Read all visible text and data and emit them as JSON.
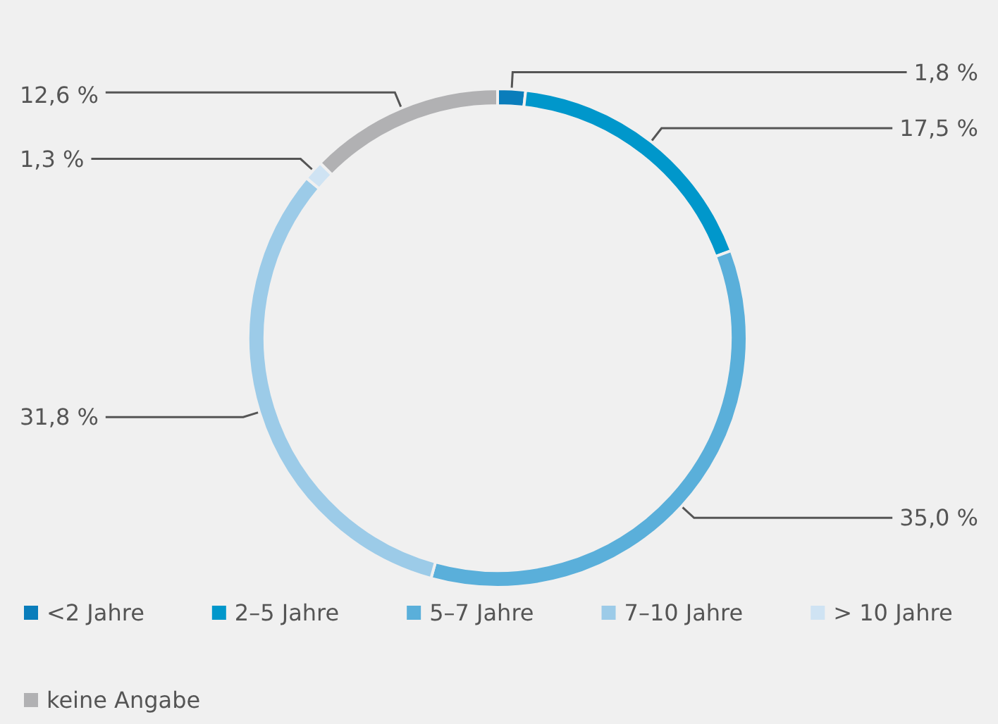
{
  "chart_data": {
    "type": "donut",
    "categories": [
      "<2 Jahre",
      "2–5 Jahre",
      "5–7 Jahre",
      "7–10 Jahre",
      "> 10 Jahre",
      "keine Angabe"
    ],
    "values": [
      1.8,
      17.5,
      35.0,
      31.8,
      1.3,
      12.6
    ],
    "value_labels": [
      "1,8 %",
      "17,5 %",
      "35,0 %",
      "31,8 %",
      "1,3 %",
      "12,6 %"
    ],
    "colors": [
      "#0a7dbb",
      "#0097cb",
      "#5aafda",
      "#9ccbe8",
      "#cfe3f3",
      "#b1b1b3"
    ],
    "legend": "bottom left"
  }
}
